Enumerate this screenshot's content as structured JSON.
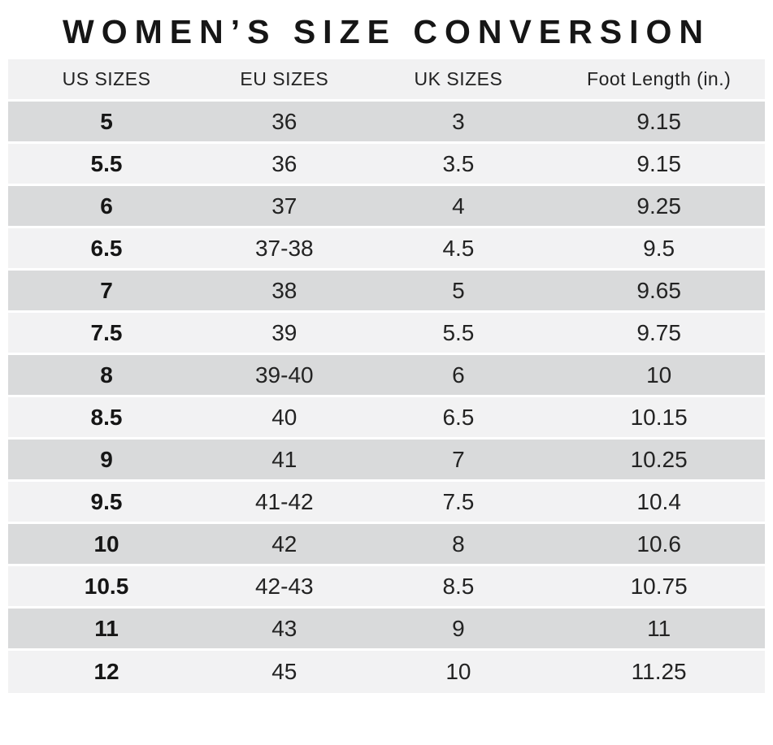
{
  "title": "WOMEN’S SIZE CONVERSION",
  "chart_data": {
    "type": "table",
    "title": "WOMEN’S SIZE CONVERSION",
    "columns": [
      "US SIZES",
      "EU SIZES",
      "UK SIZES",
      "Foot Length (in.)"
    ],
    "rows": [
      [
        "5",
        "36",
        "3",
        "9.15"
      ],
      [
        "5.5",
        "36",
        "3.5",
        "9.15"
      ],
      [
        "6",
        "37",
        "4",
        "9.25"
      ],
      [
        "6.5",
        "37-38",
        "4.5",
        "9.5"
      ],
      [
        "7",
        "38",
        "5",
        "9.65"
      ],
      [
        "7.5",
        "39",
        "5.5",
        "9.75"
      ],
      [
        "8",
        "39-40",
        "6",
        "10"
      ],
      [
        "8.5",
        "40",
        "6.5",
        "10.15"
      ],
      [
        "9",
        "41",
        "7",
        "10.25"
      ],
      [
        "9.5",
        "41-42",
        "7.5",
        "10.4"
      ],
      [
        "10",
        "42",
        "8",
        "10.6"
      ],
      [
        "10.5",
        "42-43",
        "8.5",
        "10.75"
      ],
      [
        "11",
        "43",
        "9",
        "11"
      ],
      [
        "12",
        "45",
        "10",
        "11.25"
      ]
    ],
    "layout": {
      "striped": true,
      "first_data_row_shade": "dark",
      "legend_position": "none",
      "grid": "off"
    }
  },
  "colors": {
    "row_dark": "#d9dadb",
    "row_light": "#f2f2f3",
    "header_bg": "#f1f1f2",
    "text": "#1c1c1c",
    "page_bg": "#ffffff"
  }
}
